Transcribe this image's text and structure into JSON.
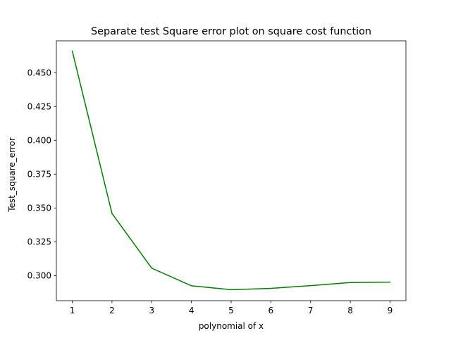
{
  "chart_data": {
    "type": "line",
    "title": "Separate test Square error plot on square cost function",
    "xlabel": "polynomial of x",
    "ylabel": "Test_square_error",
    "x": [
      1,
      2,
      3,
      4,
      5,
      6,
      7,
      8,
      9
    ],
    "xticks": [
      1,
      2,
      3,
      4,
      5,
      6,
      7,
      8,
      9
    ],
    "yticks": [
      0.3,
      0.325,
      0.35,
      0.375,
      0.4,
      0.425,
      0.45
    ],
    "ytick_labels": [
      "0.300",
      "0.325",
      "0.350",
      "0.375",
      "0.400",
      "0.425",
      "0.450"
    ],
    "xlim": [
      0.6,
      9.4
    ],
    "ylim": [
      0.2815,
      0.4735
    ],
    "series": [
      {
        "color": "#008000",
        "values": [
          0.466,
          0.346,
          0.3055,
          0.2925,
          0.2896,
          0.2906,
          0.2926,
          0.2949,
          0.2952
        ]
      }
    ],
    "grid": false,
    "legend": "none"
  }
}
